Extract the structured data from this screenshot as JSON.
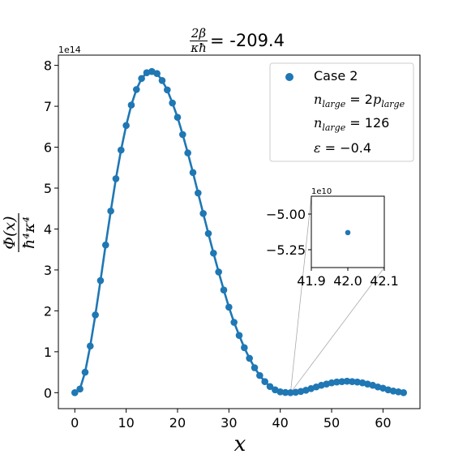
{
  "chart_data": [
    {
      "type": "line",
      "title_value": "= -209.4",
      "title_fraction": {
        "numerator": "2β",
        "denominator": "κħ"
      },
      "xlabel": "x",
      "ylabel_fraction": {
        "numerator": "Φ(x)",
        "denominator": "ħ⁴κ⁴"
      },
      "y_offset_text": "1e14",
      "xlim": [
        -3.2,
        67.2
      ],
      "ylim": [
        -0.39,
        8.25
      ],
      "xticks": [
        0,
        10,
        20,
        30,
        40,
        50,
        60
      ],
      "xtick_labels": [
        "0",
        "10",
        "20",
        "30",
        "40",
        "50",
        "60"
      ],
      "yticks": [
        0,
        1,
        2,
        3,
        4,
        5,
        6,
        7,
        8
      ],
      "ytick_labels": [
        "0",
        "1",
        "2",
        "3",
        "4",
        "5",
        "6",
        "7",
        "8"
      ],
      "grid": false,
      "color": "#1f77b4",
      "legend_position": "top-right",
      "legend": [
        {
          "kind": "marker",
          "text": "Case 2"
        },
        {
          "kind": "math",
          "lhs": "n",
          "lhs_sub": "large",
          "rel": " = 2",
          "rhs": "p",
          "rhs_sub": "large"
        },
        {
          "kind": "math",
          "lhs": "n",
          "lhs_sub": "large",
          "rel": " = 126"
        },
        {
          "kind": "math",
          "lhs": "ε",
          "rel": " = −0.4"
        }
      ],
      "series": [
        {
          "name": "Case 2",
          "x": [
            0,
            1,
            2,
            3,
            4,
            5,
            6,
            7,
            8,
            9,
            10,
            11,
            12,
            13,
            14,
            15,
            16,
            17,
            18,
            19,
            20,
            21,
            22,
            23,
            24,
            25,
            26,
            27,
            28,
            29,
            30,
            31,
            32,
            33,
            34,
            35,
            36,
            37,
            38,
            39,
            40,
            41,
            42,
            43,
            44,
            45,
            46,
            47,
            48,
            49,
            50,
            51,
            52,
            53,
            54,
            55,
            56,
            57,
            58,
            59,
            60,
            61,
            62,
            63,
            64
          ],
          "y": [
            0.0,
            0.09,
            0.5,
            1.14,
            1.9,
            2.74,
            3.61,
            4.44,
            5.23,
            5.93,
            6.53,
            7.03,
            7.41,
            7.68,
            7.82,
            7.85,
            7.8,
            7.63,
            7.4,
            7.08,
            6.73,
            6.31,
            5.86,
            5.38,
            4.88,
            4.38,
            3.89,
            3.41,
            2.95,
            2.51,
            2.09,
            1.72,
            1.4,
            1.1,
            0.84,
            0.61,
            0.42,
            0.27,
            0.15,
            0.07,
            0.02,
            0.005,
            0.0,
            0.01,
            0.03,
            0.06,
            0.1,
            0.14,
            0.18,
            0.21,
            0.24,
            0.26,
            0.27,
            0.28,
            0.27,
            0.26,
            0.24,
            0.21,
            0.18,
            0.14,
            0.11,
            0.07,
            0.04,
            0.02,
            0.0
          ]
        }
      ]
    },
    {
      "type": "scatter",
      "role": "inset",
      "y_offset_text": "1e10",
      "xlim": [
        41.9,
        42.1
      ],
      "ylim": [
        -5.375,
        -4.875
      ],
      "xticks": [
        41.9,
        42.0,
        42.1
      ],
      "xtick_labels": [
        "41.9",
        "42.0",
        "42.1"
      ],
      "yticks": [
        -5.0,
        -5.25
      ],
      "ytick_labels": [
        "−5.00",
        "−5.25"
      ],
      "color": "#1f77b4",
      "series": [
        {
          "name": "",
          "x": [
            42.0
          ],
          "y": [
            -5.13
          ]
        }
      ]
    }
  ]
}
